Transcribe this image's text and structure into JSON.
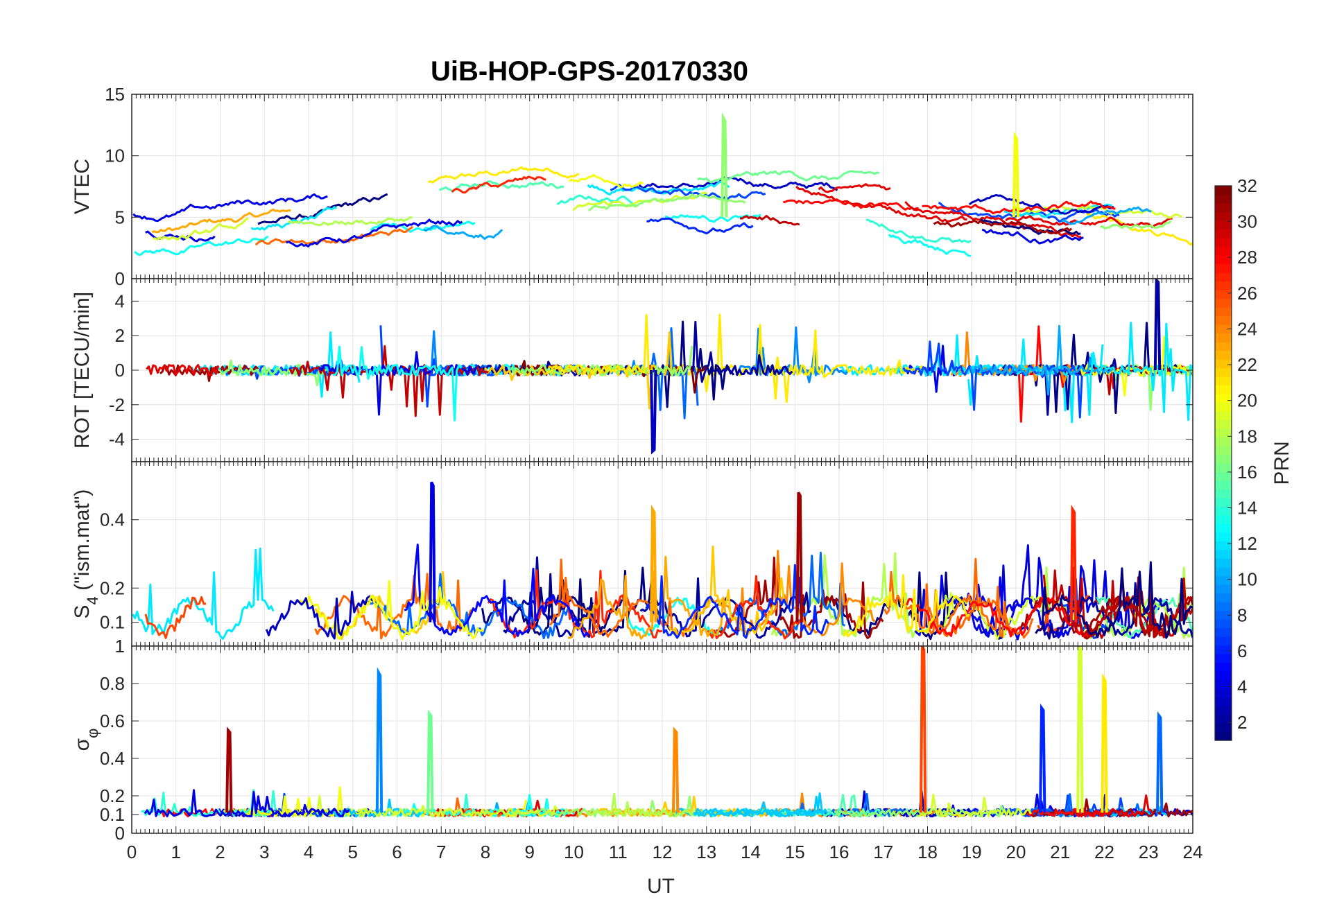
{
  "chart_data": {
    "type": "line",
    "title": "UiB-HOP-GPS-20170330",
    "xlabel": "UT",
    "xlim": [
      0,
      24
    ],
    "xticks": [
      0,
      1,
      2,
      3,
      4,
      5,
      6,
      7,
      8,
      9,
      10,
      11,
      12,
      13,
      14,
      15,
      16,
      17,
      18,
      19,
      20,
      21,
      22,
      23,
      24
    ],
    "grid": true,
    "colorbar": {
      "label": "PRN",
      "colormap": "jet",
      "range": [
        1,
        32
      ],
      "ticks": [
        2,
        4,
        6,
        8,
        10,
        12,
        14,
        16,
        18,
        20,
        22,
        24,
        26,
        28,
        30,
        32
      ],
      "position": "right"
    },
    "panels": [
      {
        "id": "vtec",
        "ylabel": "VTEC",
        "ylim": [
          0,
          15
        ],
        "yticks": [
          0,
          5,
          10,
          15
        ],
        "typical_range": [
          1.5,
          13
        ],
        "baseline": [
          3,
          7
        ]
      },
      {
        "id": "rot",
        "ylabel": "ROT [TECU/min]",
        "ylim": [
          -5.3,
          5.3
        ],
        "yticks": [
          -4,
          -2,
          0,
          2,
          4
        ],
        "typical_range": [
          -5,
          5
        ],
        "baseline": [
          -0.2,
          0.2
        ]
      },
      {
        "id": "s4",
        "ylabel_base": "S",
        "ylabel_sub": "4",
        "ylabel_rest": " (\"ism.mat\")",
        "ylim": [
          0.03,
          0.57
        ],
        "yticks": [
          0.1,
          0.2,
          0.4
        ],
        "typical_range": [
          0.05,
          0.5
        ],
        "baseline": [
          0.05,
          0.15
        ]
      },
      {
        "id": "sigma",
        "ylabel_base": "σ",
        "ylabel_sub": "φ",
        "ylim": [
          0,
          1
        ],
        "yticks": [
          0,
          0.1,
          0.2,
          0.4,
          0.6,
          0.8,
          1
        ],
        "typical_range": [
          0.08,
          1
        ],
        "baseline": [
          0.09,
          0.13
        ]
      }
    ],
    "spike_events": [
      {
        "panel": "vtec",
        "x": 13.4,
        "y": 13.1,
        "prn": 17
      },
      {
        "panel": "vtec",
        "x": 20.0,
        "y": 11.6,
        "prn": 20
      },
      {
        "panel": "rot",
        "x": 23.2,
        "y": 5.2,
        "prn": 2
      },
      {
        "panel": "rot",
        "x": 11.8,
        "y": -4.7,
        "prn": 3
      },
      {
        "panel": "s4",
        "x": 6.8,
        "y": 0.51,
        "prn": 4
      },
      {
        "panel": "s4",
        "x": 15.1,
        "y": 0.48,
        "prn": 31
      },
      {
        "panel": "s4",
        "x": 21.3,
        "y": 0.43,
        "prn": 27
      },
      {
        "panel": "s4",
        "x": 11.8,
        "y": 0.43,
        "prn": 23
      },
      {
        "panel": "sigma",
        "x": 17.9,
        "y": 1.0,
        "prn": 26
      },
      {
        "panel": "sigma",
        "x": 21.45,
        "y": 1.0,
        "prn": 19
      },
      {
        "panel": "sigma",
        "x": 5.6,
        "y": 0.86,
        "prn": 9
      },
      {
        "panel": "sigma",
        "x": 22.0,
        "y": 0.83,
        "prn": 21
      },
      {
        "panel": "sigma",
        "x": 20.6,
        "y": 0.67,
        "prn": 6
      },
      {
        "panel": "sigma",
        "x": 6.75,
        "y": 0.64,
        "prn": 16
      },
      {
        "panel": "sigma",
        "x": 2.2,
        "y": 0.55,
        "prn": 31
      },
      {
        "panel": "sigma",
        "x": 12.3,
        "y": 0.55,
        "prn": 24
      },
      {
        "panel": "sigma",
        "x": 23.25,
        "y": 0.63,
        "prn": 8
      }
    ]
  }
}
